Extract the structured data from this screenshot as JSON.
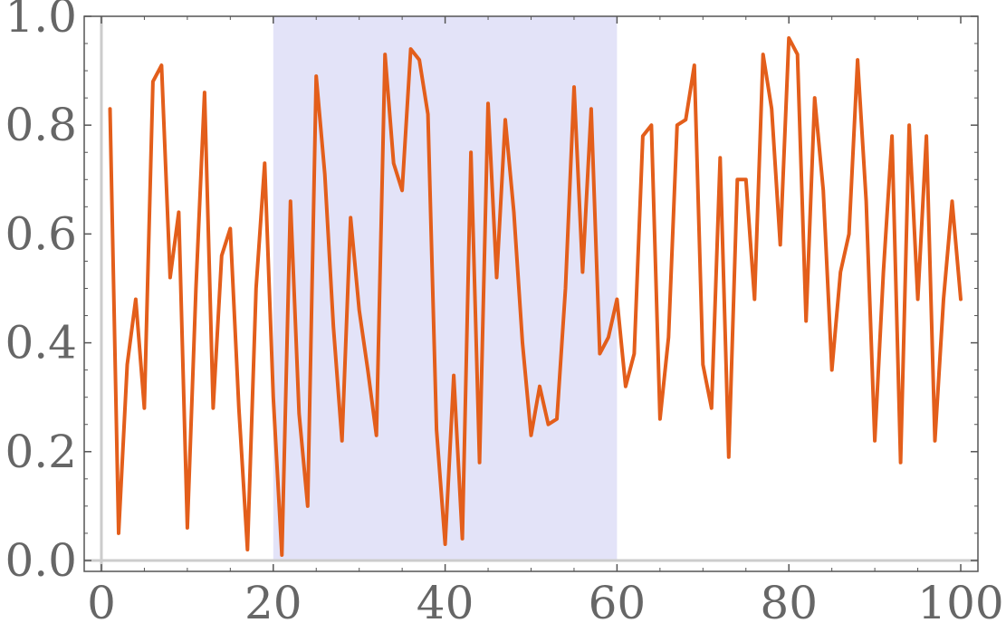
{
  "chart_data": {
    "type": "line",
    "title": "",
    "xlabel": "",
    "ylabel": "",
    "xlim": [
      -2,
      102
    ],
    "ylim": [
      -0.02,
      1.0
    ],
    "xticks": [
      0,
      20,
      40,
      60,
      80,
      100
    ],
    "xtick_labels": [
      "0",
      "20",
      "40",
      "60",
      "80",
      "100"
    ],
    "yticks": [
      0.0,
      0.2,
      0.4,
      0.6,
      0.8,
      1.0
    ],
    "ytick_labels": [
      "0.0",
      "0.2",
      "0.4",
      "0.6",
      "0.8",
      "1.0"
    ],
    "grid": false,
    "highlight_region": {
      "x_start": 20,
      "x_end": 60,
      "y_start": 0.0,
      "y_end": 1.0
    },
    "colors": {
      "series": "#E35E1B",
      "highlight": "#E3E3F8",
      "axis": "#cccccc",
      "frame": "#555555",
      "tick_text": "#666666"
    },
    "series": [
      {
        "x": [
          1,
          2,
          3,
          4,
          5,
          6,
          7,
          8,
          9,
          10,
          11,
          12,
          13,
          14,
          15,
          16,
          17,
          18,
          19,
          20,
          21,
          22,
          23,
          24,
          25,
          26,
          27,
          28,
          29,
          30,
          31,
          32,
          33,
          34,
          35,
          36,
          37,
          38,
          39,
          40,
          41,
          42,
          43,
          44,
          45,
          46,
          47,
          48,
          49,
          50,
          51,
          52,
          53,
          54,
          55,
          56,
          57,
          58,
          59,
          60,
          61,
          62,
          63,
          64,
          65,
          66,
          67,
          68,
          69,
          70,
          71,
          72,
          73,
          74,
          75,
          76,
          77,
          78,
          79,
          80,
          81,
          82,
          83,
          84,
          85,
          86,
          87,
          88,
          89,
          90,
          91,
          92,
          93,
          94,
          95,
          96,
          97,
          98,
          99,
          100
        ],
        "values": [
          0.83,
          0.05,
          0.36,
          0.48,
          0.28,
          0.88,
          0.91,
          0.52,
          0.64,
          0.06,
          0.5,
          0.86,
          0.28,
          0.56,
          0.61,
          0.28,
          0.02,
          0.5,
          0.73,
          0.3,
          0.01,
          0.66,
          0.27,
          0.1,
          0.89,
          0.71,
          0.43,
          0.22,
          0.63,
          0.46,
          0.35,
          0.23,
          0.93,
          0.73,
          0.68,
          0.94,
          0.92,
          0.82,
          0.24,
          0.03,
          0.34,
          0.04,
          0.75,
          0.18,
          0.84,
          0.52,
          0.81,
          0.64,
          0.4,
          0.23,
          0.32,
          0.25,
          0.26,
          0.5,
          0.87,
          0.53,
          0.83,
          0.38,
          0.41,
          0.48,
          0.32,
          0.38,
          0.78,
          0.8,
          0.26,
          0.41,
          0.8,
          0.81,
          0.91,
          0.36,
          0.28,
          0.74,
          0.19,
          0.7,
          0.7,
          0.48,
          0.93,
          0.83,
          0.58,
          0.96,
          0.93,
          0.44,
          0.85,
          0.68,
          0.35,
          0.53,
          0.6,
          0.92,
          0.66,
          0.22,
          0.53,
          0.78,
          0.18,
          0.8,
          0.48,
          0.78,
          0.22,
          0.48,
          0.66,
          0.48
        ]
      }
    ]
  }
}
